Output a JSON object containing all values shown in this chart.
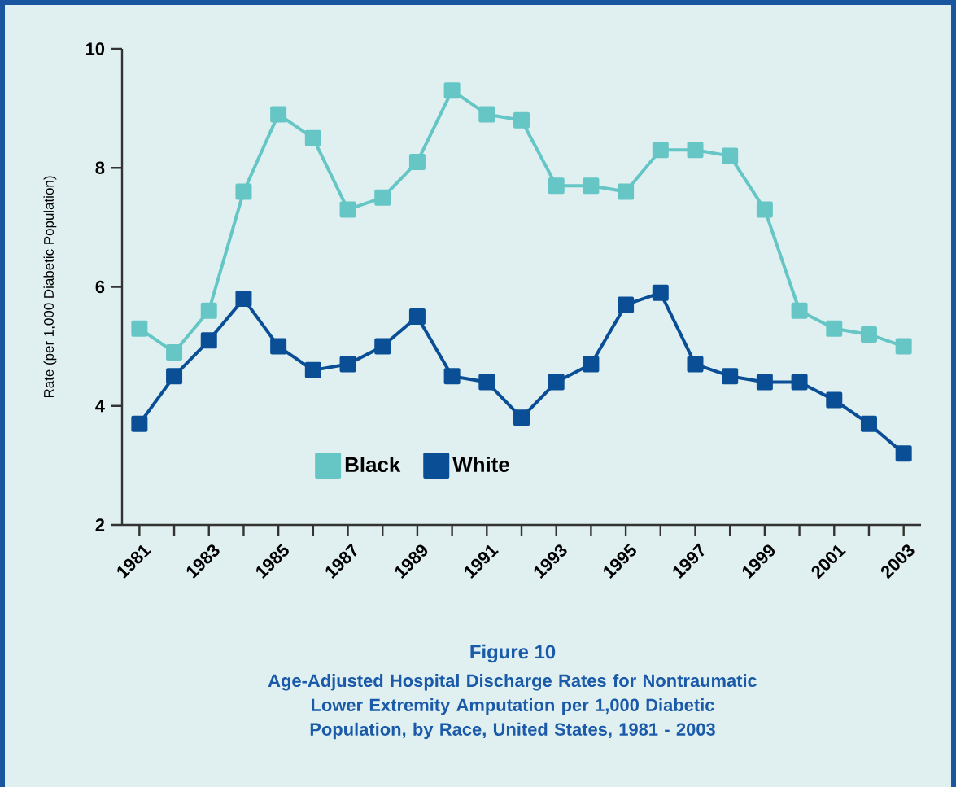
{
  "chart_data": {
    "type": "line",
    "title": "Figure 10",
    "subtitle": "Age-Adjusted Hospital Discharge Rates for Nontraumatic Lower Extremity Amputation per 1,000 Diabetic Population, by Race, United States, 1981 - 2003",
    "ylabel": "Rate (per 1,000 Diabetic Population)",
    "x": [
      1981,
      1982,
      1983,
      1984,
      1985,
      1986,
      1987,
      1988,
      1989,
      1990,
      1991,
      1992,
      1993,
      1994,
      1995,
      1996,
      1997,
      1998,
      1999,
      2000,
      2001,
      2002,
      2003
    ],
    "series": [
      {
        "name": "Black",
        "color": "#66c6c6",
        "values": [
          5.3,
          4.9,
          5.6,
          7.6,
          8.9,
          8.5,
          7.3,
          7.5,
          8.1,
          9.3,
          8.9,
          8.8,
          7.7,
          7.7,
          7.6,
          8.3,
          8.3,
          8.2,
          7.3,
          5.6,
          5.3,
          5.2,
          5.0
        ]
      },
      {
        "name": "White",
        "color": "#0a4e96",
        "values": [
          3.7,
          4.5,
          5.1,
          5.8,
          5.0,
          4.6,
          4.7,
          5.0,
          5.5,
          4.5,
          4.4,
          3.8,
          4.4,
          4.7,
          5.7,
          5.9,
          4.7,
          4.5,
          4.4,
          4.4,
          4.1,
          3.7,
          3.2
        ]
      }
    ],
    "xlim": [
      1980.5,
      2003.5
    ],
    "xticks": [
      1981,
      {
        "value": 1982,
        "label": null
      },
      1983,
      {
        "value": 1984,
        "label": null
      },
      1985,
      {
        "value": 1986,
        "label": null
      },
      1987,
      {
        "value": 1988,
        "label": null
      },
      1989,
      {
        "value": 1990,
        "label": null
      },
      1991,
      {
        "value": 1992,
        "label": null
      },
      1993,
      {
        "value": 1994,
        "label": null
      },
      1995,
      {
        "value": 1996,
        "label": null
      },
      1997,
      {
        "value": 1998,
        "label": null
      },
      1999,
      {
        "value": 2000,
        "label": null
      },
      2001,
      {
        "value": 2002,
        "label": null
      },
      2003
    ],
    "ylim": [
      2,
      10
    ],
    "yticks": [
      2,
      4,
      6,
      8,
      10
    ],
    "legend": "bottom left",
    "marker": "square",
    "line_style": "solid"
  }
}
